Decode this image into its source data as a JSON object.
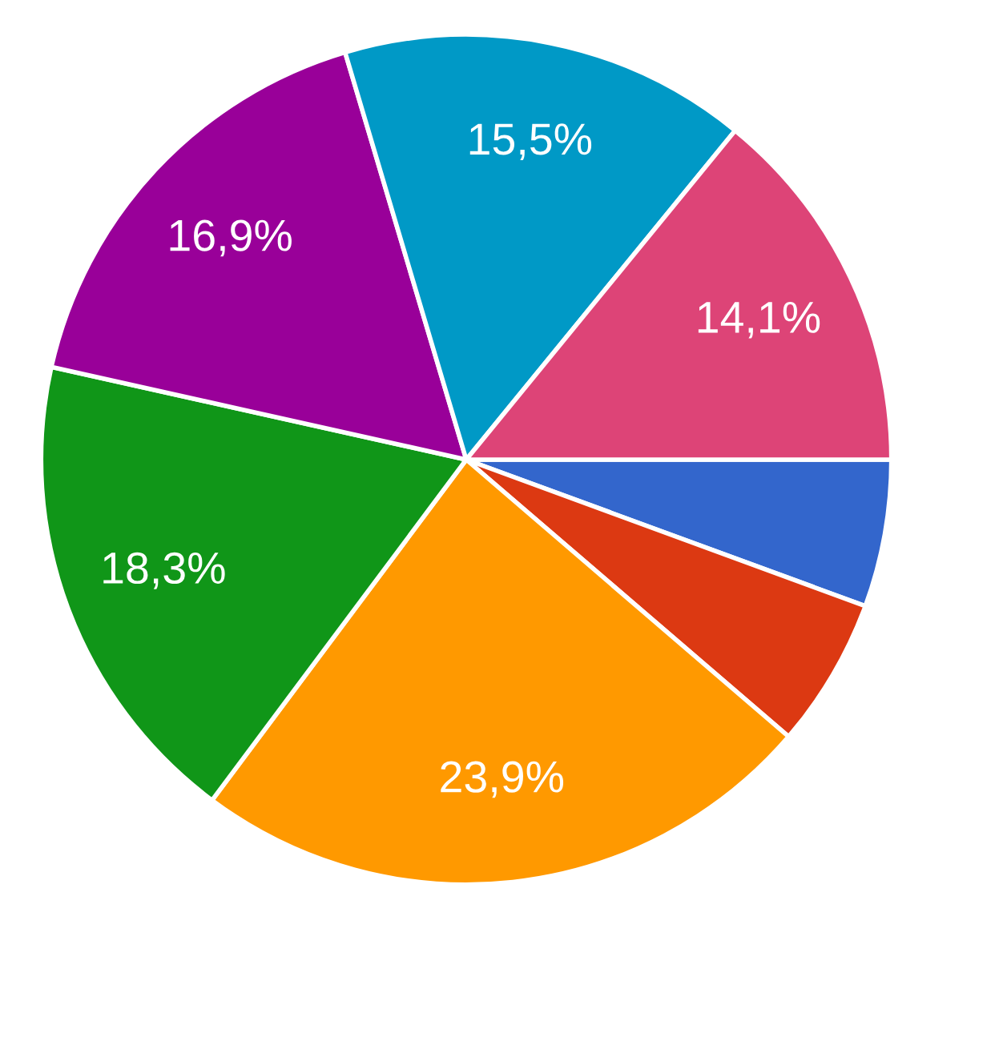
{
  "chart_data": {
    "type": "pie",
    "categories": [
      null,
      null,
      null,
      null,
      null,
      null,
      null
    ],
    "values": [
      5.6,
      5.7,
      23.9,
      18.3,
      16.9,
      15.5,
      14.1
    ],
    "colors": [
      "#3366cc",
      "#dc3912",
      "#ff9900",
      "#109618",
      "#990099",
      "#0099c6",
      "#dd4477"
    ],
    "value_labels": [
      null,
      null,
      "23,9%",
      "18,3%",
      "16,9%",
      "15,5%",
      "14,1%"
    ]
  }
}
